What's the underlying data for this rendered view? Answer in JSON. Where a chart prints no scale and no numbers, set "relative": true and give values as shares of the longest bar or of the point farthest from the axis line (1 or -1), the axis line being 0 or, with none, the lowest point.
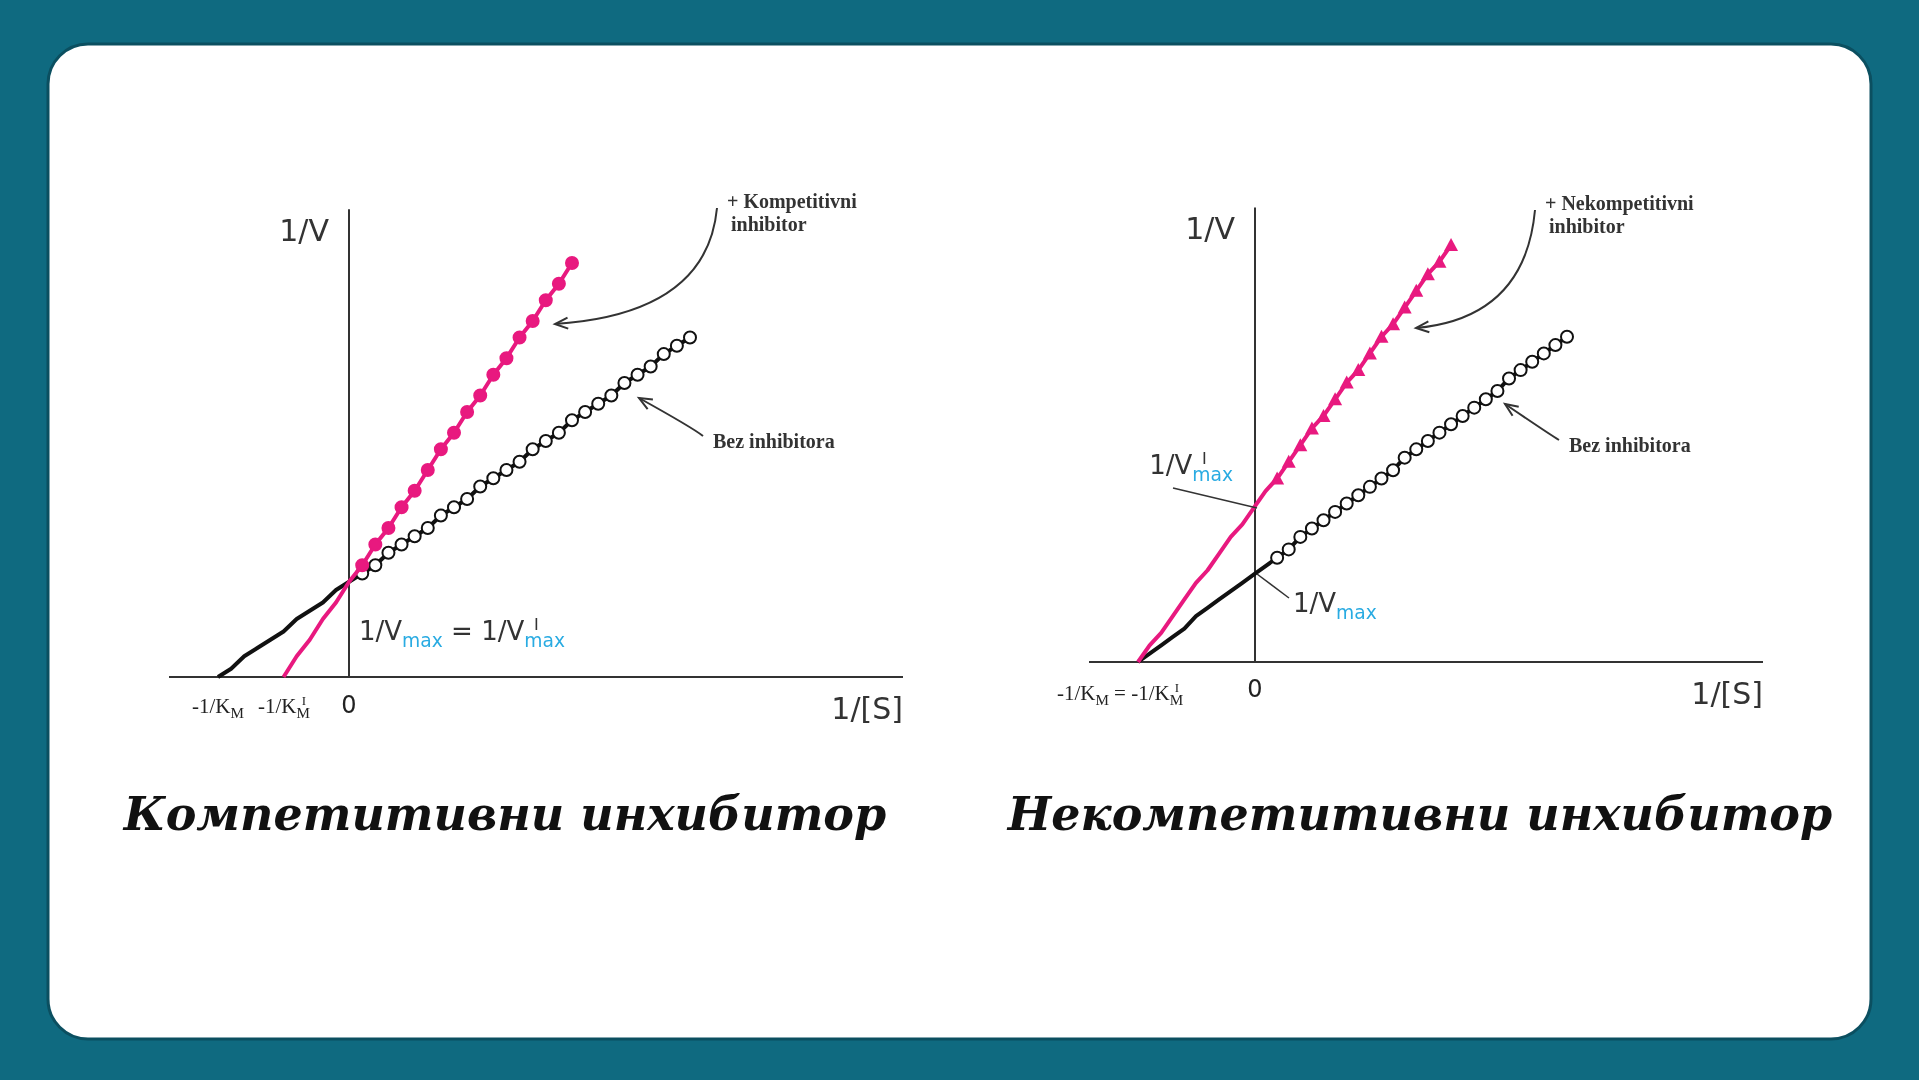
{
  "chart_data": [
    {
      "type": "line",
      "relative": true,
      "title": "Компетитивни инхибитор",
      "ylabel": "1/V",
      "xlabel": "1/[S]",
      "categories": [
        null,
        null,
        null,
        null,
        null,
        null,
        null,
        null,
        null,
        null,
        null,
        null,
        null,
        null,
        null,
        null,
        null,
        null,
        null,
        null,
        null,
        null,
        null,
        null,
        null,
        null,
        null,
        null,
        null,
        null,
        null,
        null,
        null,
        null,
        null,
        null,
        null
      ],
      "series": [
        {
          "color": "#111111",
          "values": [
            0,
            0.02,
            0.05,
            0.07,
            0.09,
            0.11,
            0.14,
            0.16,
            0.18,
            0.21,
            0.23,
            0.25,
            null,
            null,
            null,
            null,
            null,
            null,
            null,
            null,
            null,
            null,
            null,
            null,
            null,
            null,
            null,
            null,
            null,
            null,
            null,
            null,
            null,
            null,
            null,
            null,
            null
          ]
        },
        {
          "color": "#111111",
          "marker": "circle",
          "values": [
            null,
            null,
            null,
            null,
            null,
            null,
            null,
            null,
            null,
            null,
            null,
            0.25,
            0.27,
            0.3,
            0.32,
            0.34,
            0.36,
            0.39,
            0.41,
            0.43,
            0.46,
            0.48,
            0.5,
            0.52,
            0.55,
            0.57,
            0.59,
            0.62,
            0.64,
            0.66,
            0.68,
            0.71,
            0.73,
            0.75,
            0.78,
            0.8,
            0.82
          ]
        },
        {
          "color": "#e8197f",
          "values": [
            null,
            null,
            null,
            null,
            null,
            0,
            0.05,
            0.09,
            0.14,
            0.18,
            0.23,
            0.27,
            null,
            null,
            null,
            null,
            null,
            null,
            null,
            null,
            null,
            null,
            null,
            null,
            null,
            null,
            null,
            null,
            null,
            null,
            null,
            null,
            null,
            null,
            null,
            null,
            null
          ]
        },
        {
          "color": "#e8197f",
          "marker": "circle",
          "values": [
            null,
            null,
            null,
            null,
            null,
            null,
            null,
            null,
            null,
            null,
            null,
            0.27,
            0.32,
            0.36,
            0.41,
            0.45,
            0.5,
            0.55,
            0.59,
            0.64,
            0.68,
            0.73,
            0.77,
            0.82,
            0.86,
            0.91,
            0.95,
            1.0,
            null,
            null,
            null,
            null,
            null,
            null,
            null,
            null,
            null
          ]
        }
      ],
      "annotations": [
        "+ Kompetitivni inhibitor",
        "Bez inhibitora",
        "1/V$_{max}$ = 1/V$_{max}$$^{I}$",
        "-1/K$_{M}$",
        "-1/K$_{M}$$^{I}$",
        "0"
      ]
    },
    {
      "type": "line",
      "relative": true,
      "title": "Некомпетитивни инхибитор",
      "ylabel": "1/V",
      "xlabel": "1/[S]",
      "categories": [
        null,
        null,
        null,
        null,
        null,
        null,
        null,
        null,
        null,
        null,
        null,
        null,
        null,
        null,
        null,
        null,
        null,
        null,
        null,
        null,
        null,
        null,
        null,
        null,
        null,
        null,
        null,
        null,
        null,
        null,
        null,
        null,
        null,
        null,
        null,
        null,
        null,
        null
      ],
      "series": [
        {
          "color": "#111111",
          "values": [
            0,
            0.02,
            0.04,
            0.06,
            0.08,
            0.11,
            0.13,
            0.15,
            0.17,
            0.19,
            0.21,
            0.23,
            0.25,
            null,
            null,
            null,
            null,
            null,
            null,
            null,
            null,
            null,
            null,
            null,
            null,
            null,
            null,
            null,
            null,
            null,
            null,
            null,
            null,
            null,
            null,
            null,
            null,
            null
          ]
        },
        {
          "color": "#111111",
          "marker": "circle",
          "values": [
            null,
            null,
            null,
            null,
            null,
            null,
            null,
            null,
            null,
            null,
            null,
            null,
            0.25,
            0.27,
            0.3,
            0.32,
            0.34,
            0.36,
            0.38,
            0.4,
            0.42,
            0.44,
            0.46,
            0.49,
            0.51,
            0.53,
            0.55,
            0.57,
            0.59,
            0.61,
            0.63,
            0.65,
            0.68,
            0.7,
            0.72,
            0.74,
            0.76,
            0.78
          ]
        },
        {
          "color": "#e8197f",
          "values": [
            0,
            0.04,
            0.07,
            0.11,
            0.15,
            0.19,
            0.22,
            0.26,
            0.3,
            0.33,
            0.37,
            0.41,
            0.44,
            null,
            null,
            null,
            null,
            null,
            null,
            null,
            null,
            null,
            null,
            null,
            null,
            null,
            null,
            null,
            null,
            null,
            null,
            null,
            null,
            null,
            null,
            null,
            null,
            null
          ]
        },
        {
          "color": "#e8197f",
          "marker": "triangle",
          "values": [
            null,
            null,
            null,
            null,
            null,
            null,
            null,
            null,
            null,
            null,
            null,
            null,
            0.44,
            0.48,
            0.52,
            0.56,
            0.59,
            0.63,
            0.67,
            0.7,
            0.74,
            0.78,
            0.81,
            0.85,
            0.89,
            0.93,
            0.96,
            1.0,
            null,
            null,
            null,
            null,
            null,
            null,
            null,
            null,
            null,
            null
          ]
        }
      ],
      "annotations": [
        "+ Nekompetitivni inhibitor",
        "Bez inhibitora",
        "1/V$_{max}$$^{I}$",
        "1/V$_{max}$",
        "-1/K$_{M}$ = -1/K$_{M}$$^{I}$",
        "0"
      ]
    }
  ]
}
